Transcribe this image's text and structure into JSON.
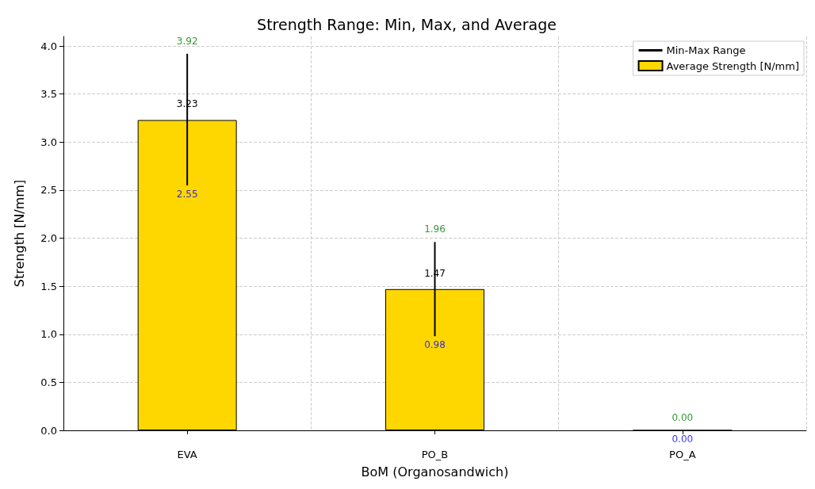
{
  "chart_data": {
    "type": "bar",
    "title": "Strength Range: Min, Max, and Average",
    "xlabel": "BoM (Organosandwich)",
    "ylabel": "Strength [N/mm]",
    "categories": [
      "EVA",
      "PO_B",
      "PO_A"
    ],
    "series": [
      {
        "name": "Average Strength [N/mm]",
        "color": "#ffd700",
        "values": [
          3.23,
          1.47,
          0
        ],
        "value_labels": [
          "3.23",
          "1.47",
          null
        ]
      },
      {
        "name": "Min-Max Range",
        "color": "#000000",
        "base": [
          2.55,
          0.98,
          null
        ],
        "values": [
          1.37,
          0.98,
          null
        ]
      }
    ],
    "annotations": [
      {
        "text": "3.92",
        "x": "EVA",
        "y": 3.92
      },
      {
        "text": "2.55",
        "x": "EVA",
        "y": 2.55
      },
      {
        "text": "1.96",
        "x": "PO_B",
        "y": 1.96
      },
      {
        "text": "0.98",
        "x": "PO_B",
        "y": 0.98
      },
      {
        "text": "0.00",
        "x": "PO_A",
        "y": 0
      },
      {
        "text": "0.00",
        "x": "PO_A",
        "y": 0
      }
    ],
    "ylim": [
      0,
      4.1
    ],
    "yticks": [
      {
        "value": 0,
        "label": "0.0"
      },
      0.5,
      {
        "value": 1,
        "label": "1.0"
      },
      1.5,
      {
        "value": 2,
        "label": "2.0"
      },
      2.5,
      {
        "value": 3,
        "label": "3.0"
      },
      3.5,
      {
        "value": 4,
        "label": "4.0"
      }
    ],
    "grid": true,
    "legend": "top right"
  }
}
